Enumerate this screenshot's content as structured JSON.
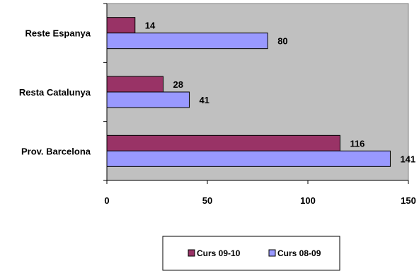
{
  "chart_data": {
    "type": "bar",
    "orientation": "horizontal",
    "categories": [
      "Prov. Barcelona",
      "Resta Catalunya",
      "Reste Espanya"
    ],
    "series": [
      {
        "name": "Curs 09-10",
        "values": [
          116,
          28,
          14
        ],
        "color": "#993366"
      },
      {
        "name": "Curs 08-09",
        "values": [
          141,
          41,
          80
        ],
        "color": "#9999ff"
      }
    ],
    "xlim": [
      0,
      150
    ],
    "xticks": [
      0,
      50,
      100,
      150
    ],
    "grid": false,
    "plot_background": "#c0c0c0",
    "legend_position": "bottom",
    "title": "",
    "xlabel": "",
    "ylabel": ""
  }
}
